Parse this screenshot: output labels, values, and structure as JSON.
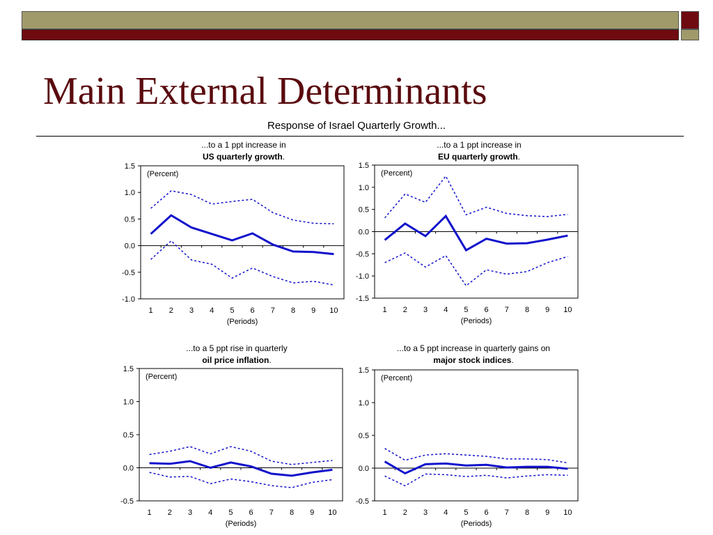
{
  "slide": {
    "title": "Main External Determinants",
    "subtitle": "Response of Israel Quarterly Growth...",
    "colors": {
      "header_olive": "#a09a6a",
      "header_maroon": "#6f0a10",
      "title": "#5a0b0f",
      "series": "#1111cc"
    }
  },
  "chart_data": [
    {
      "type": "line",
      "title_prefix": "...to a 1 ppt increase in",
      "title_bold": "US quarterly growth",
      "title_suffix": ".",
      "unit_label": "(Percent)",
      "xlabel": "(Periods)",
      "x": [
        1,
        2,
        3,
        4,
        5,
        6,
        7,
        8,
        9,
        10
      ],
      "ylim": [
        -1.0,
        1.5
      ],
      "yticks": [
        "1.5",
        "1.0",
        "0.5",
        "0.0",
        "-0.5",
        "-1.0"
      ],
      "series": [
        {
          "style": "solid",
          "values": [
            0.22,
            0.57,
            0.34,
            0.22,
            0.1,
            0.23,
            0.02,
            -0.11,
            -0.12,
            -0.16
          ]
        },
        {
          "style": "dotted",
          "values": [
            0.7,
            1.03,
            0.96,
            0.78,
            0.83,
            0.87,
            0.62,
            0.48,
            0.42,
            0.41
          ]
        },
        {
          "style": "dotted",
          "values": [
            -0.26,
            0.09,
            -0.27,
            -0.35,
            -0.61,
            -0.42,
            -0.58,
            -0.7,
            -0.67,
            -0.74
          ]
        }
      ]
    },
    {
      "type": "line",
      "title_prefix": "...to a 1 ppt increase in",
      "title_bold": "EU quarterly growth",
      "title_suffix": ".",
      "unit_label": "(Percent)",
      "xlabel": "(Periods)",
      "x": [
        1,
        2,
        3,
        4,
        5,
        6,
        7,
        8,
        9,
        10
      ],
      "ylim": [
        -1.5,
        1.5
      ],
      "yticks": [
        "1.5",
        "1.0",
        "0.5",
        "0.0",
        "-0.5",
        "-1.0",
        "-1.5"
      ],
      "series": [
        {
          "style": "solid",
          "values": [
            -0.19,
            0.18,
            -0.1,
            0.35,
            -0.42,
            -0.16,
            -0.27,
            -0.26,
            -0.18,
            -0.09
          ]
        },
        {
          "style": "dotted",
          "values": [
            0.31,
            0.85,
            0.66,
            1.25,
            0.38,
            0.55,
            0.41,
            0.36,
            0.34,
            0.39
          ]
        },
        {
          "style": "dotted",
          "values": [
            -0.7,
            -0.48,
            -0.8,
            -0.54,
            -1.22,
            -0.86,
            -0.96,
            -0.9,
            -0.7,
            -0.56
          ]
        }
      ]
    },
    {
      "type": "line",
      "title_prefix": "...to a 5 ppt rise in quarterly",
      "title_bold": "oil price inflation",
      "title_suffix": ".",
      "unit_label": "(Percent)",
      "xlabel": "(Periods)",
      "x": [
        1,
        2,
        3,
        4,
        5,
        6,
        7,
        8,
        9,
        10
      ],
      "ylim": [
        -0.5,
        1.5
      ],
      "yticks": [
        "1.5",
        "1.0",
        "0.5",
        "0.0",
        "-0.5"
      ],
      "series": [
        {
          "style": "solid",
          "values": [
            0.07,
            0.06,
            0.1,
            0.0,
            0.08,
            0.02,
            -0.09,
            -0.12,
            -0.07,
            -0.03
          ]
        },
        {
          "style": "dotted",
          "values": [
            0.2,
            0.25,
            0.32,
            0.21,
            0.32,
            0.25,
            0.1,
            0.05,
            0.08,
            0.11
          ]
        },
        {
          "style": "dotted",
          "values": [
            -0.07,
            -0.14,
            -0.13,
            -0.24,
            -0.17,
            -0.21,
            -0.27,
            -0.3,
            -0.22,
            -0.18
          ]
        }
      ]
    },
    {
      "type": "line",
      "title_prefix": "...to a 5 ppt increase in quarterly gains on",
      "title_bold": "major stock indices",
      "title_suffix": ".",
      "unit_label": "(Percent)",
      "xlabel": "(Periods)",
      "x": [
        1,
        2,
        3,
        4,
        5,
        6,
        7,
        8,
        9,
        10
      ],
      "ylim": [
        -0.5,
        1.5
      ],
      "yticks": [
        "1.5",
        "1.0",
        "0.5",
        "0.0",
        "-0.5"
      ],
      "series": [
        {
          "style": "solid",
          "values": [
            0.1,
            -0.08,
            0.06,
            0.07,
            0.04,
            0.05,
            0.01,
            0.02,
            0.02,
            -0.01
          ]
        },
        {
          "style": "dotted",
          "values": [
            0.3,
            0.12,
            0.2,
            0.22,
            0.2,
            0.18,
            0.14,
            0.14,
            0.13,
            0.08
          ]
        },
        {
          "style": "dotted",
          "values": [
            -0.12,
            -0.27,
            -0.09,
            -0.1,
            -0.13,
            -0.11,
            -0.15,
            -0.12,
            -0.1,
            -0.11
          ]
        }
      ]
    }
  ]
}
